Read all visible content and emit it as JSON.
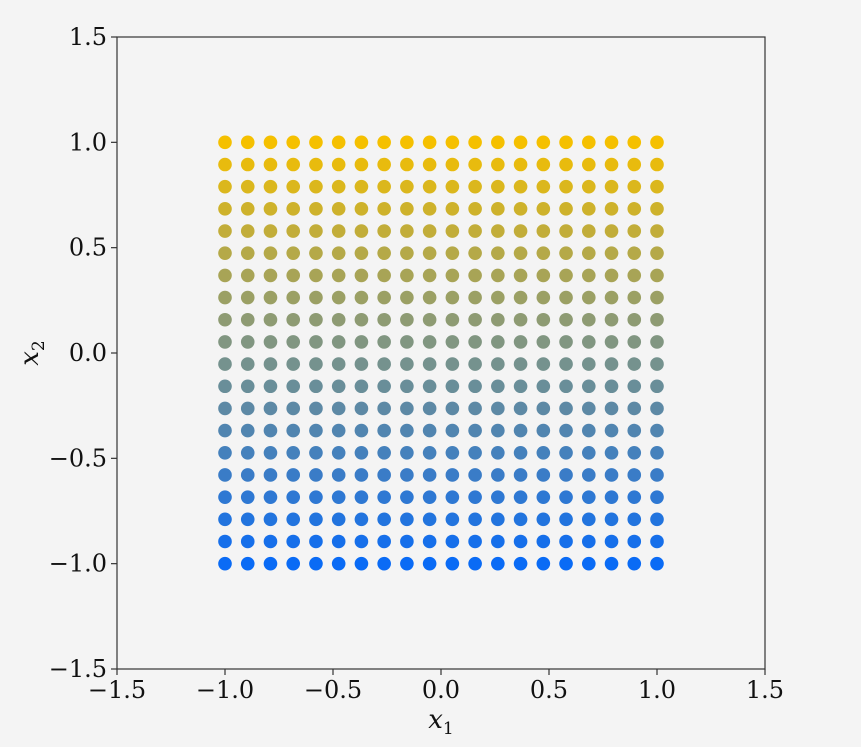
{
  "chart_data": {
    "type": "scatter",
    "title": "",
    "xlabel": {
      "base": "x",
      "sub": "1"
    },
    "ylabel": {
      "base": "x",
      "sub": "2"
    },
    "xlim": [
      -1.5,
      1.5
    ],
    "ylim": [
      -1.5,
      1.5
    ],
    "xticks": [
      -1.5,
      -1.0,
      -0.5,
      0.0,
      0.5,
      1.0,
      1.5
    ],
    "yticks": [
      -1.5,
      -1.0,
      -0.5,
      0.0,
      0.5,
      1.0,
      1.5
    ],
    "xtick_labels": [
      "−1.5",
      "−1.0",
      "−0.5",
      "0.0",
      "0.5",
      "1.0",
      "1.5"
    ],
    "ytick_labels": [
      "−1.5",
      "−1.0",
      "−0.5",
      "0.0",
      "0.5",
      "1.0",
      "1.5"
    ],
    "grid": false,
    "grid_points": {
      "x_min": -1.0,
      "x_max": 1.0,
      "x_count": 20,
      "y_min": -1.0,
      "y_max": 1.0,
      "y_count": 20
    },
    "color_by": "x2",
    "colormap": {
      "low": "#0a6bf5",
      "mid": "#7b9488",
      "high": "#f5c000"
    }
  }
}
